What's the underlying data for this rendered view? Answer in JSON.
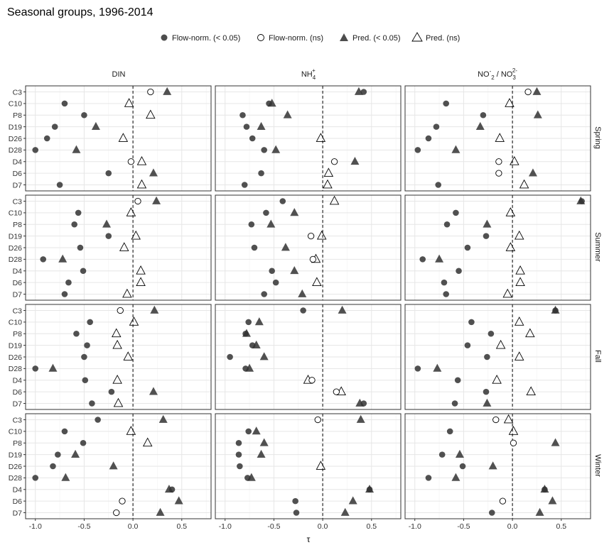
{
  "chart_data": {
    "type": "scatter",
    "title": "Seasonal groups, 1996-2014",
    "xlabel": "τ",
    "xlim": [
      -1.0,
      0.75
    ],
    "xticks": [
      "-1.0",
      "-0.5",
      "0.0",
      "0.5"
    ],
    "grid": true,
    "legend_position": "top",
    "legend": [
      {
        "key": "fn_sig",
        "label": "Flow-norm. (< 0.05)",
        "shape": "circle",
        "filled": true
      },
      {
        "key": "fn_ns",
        "label": "Flow-norm. (ns)",
        "shape": "circle",
        "filled": false
      },
      {
        "key": "pr_sig",
        "label": "Pred. (< 0.05)",
        "shape": "triangle",
        "filled": true
      },
      {
        "key": "pr_ns",
        "label": "Pred. (ns)",
        "shape": "triangle",
        "filled": false
      }
    ],
    "columns": [
      {
        "key": "DIN",
        "label": "DIN"
      },
      {
        "key": "NH4",
        "label": "NH4+"
      },
      {
        "key": "NOx",
        "label": "NO2- / NO3 2-"
      }
    ],
    "rows": [
      "Spring",
      "Summer",
      "Fall",
      "Winter"
    ],
    "sites": [
      "C3",
      "C10",
      "P8",
      "D19",
      "D26",
      "D28",
      "D4",
      "D6",
      "D7"
    ],
    "panels": {
      "Spring": {
        "DIN": {
          "fn": [
            [
              0.18,
              0
            ],
            [
              -0.7,
              1
            ],
            [
              -0.5,
              1
            ],
            [
              -0.8,
              1
            ],
            [
              -0.88,
              1
            ],
            [
              -1.0,
              1
            ],
            [
              -0.02,
              0
            ],
            [
              -0.25,
              1
            ],
            [
              -0.75,
              1
            ]
          ],
          "pr": [
            [
              0.35,
              1
            ],
            [
              -0.04,
              0
            ],
            [
              0.18,
              0
            ],
            [
              -0.38,
              1
            ],
            [
              -0.1,
              0
            ],
            [
              -0.58,
              1
            ],
            [
              0.09,
              0
            ],
            [
              0.21,
              1
            ],
            [
              0.09,
              0
            ]
          ]
        },
        "NH4": {
          "fn": [
            [
              0.42,
              1
            ],
            [
              -0.55,
              1
            ],
            [
              -0.82,
              1
            ],
            [
              -0.78,
              1
            ],
            [
              -0.72,
              1
            ],
            [
              -0.6,
              1
            ],
            [
              0.12,
              0
            ],
            [
              -0.63,
              1
            ],
            [
              -0.8,
              1
            ]
          ],
          "pr": [
            [
              0.37,
              1
            ],
            [
              -0.52,
              1
            ],
            [
              -0.36,
              1
            ],
            [
              -0.63,
              1
            ],
            [
              -0.02,
              0
            ],
            [
              -0.48,
              1
            ],
            [
              0.33,
              1
            ],
            [
              0.06,
              0
            ],
            [
              0.05,
              0
            ]
          ]
        },
        "NOx": {
          "fn": [
            [
              0.16,
              0
            ],
            [
              -0.68,
              1
            ],
            [
              -0.3,
              1
            ],
            [
              -0.78,
              1
            ],
            [
              -0.86,
              1
            ],
            [
              -0.97,
              1
            ],
            [
              -0.14,
              0
            ],
            [
              -0.14,
              0
            ],
            [
              -0.76,
              1
            ]
          ],
          "pr": [
            [
              0.25,
              1
            ],
            [
              -0.03,
              0
            ],
            [
              0.26,
              1
            ],
            [
              -0.33,
              1
            ],
            [
              -0.13,
              0
            ],
            [
              -0.58,
              1
            ],
            [
              0.02,
              0
            ],
            [
              0.21,
              1
            ],
            [
              0.12,
              0
            ]
          ]
        }
      },
      "Summer": {
        "DIN": {
          "fn": [
            [
              0.05,
              0
            ],
            [
              -0.56,
              1
            ],
            [
              -0.6,
              1
            ],
            [
              -0.25,
              1
            ],
            [
              -0.54,
              1
            ],
            [
              -0.92,
              1
            ],
            [
              -0.51,
              1
            ],
            [
              -0.66,
              1
            ],
            [
              -0.7,
              1
            ]
          ],
          "pr": [
            [
              0.24,
              1
            ],
            [
              -0.02,
              0
            ],
            [
              -0.27,
              1
            ],
            [
              0.03,
              0
            ],
            [
              -0.09,
              0
            ],
            [
              -0.72,
              1
            ],
            [
              0.08,
              0
            ],
            [
              0.08,
              0
            ],
            [
              -0.06,
              0
            ]
          ]
        },
        "NH4": {
          "fn": [
            [
              -0.41,
              1
            ],
            [
              -0.58,
              1
            ],
            [
              -0.73,
              1
            ],
            [
              -0.12,
              0
            ],
            [
              -0.7,
              1
            ],
            [
              -0.1,
              0
            ],
            [
              -0.52,
              1
            ],
            [
              -0.48,
              1
            ],
            [
              -0.6,
              1
            ]
          ],
          "pr": [
            [
              0.12,
              0
            ],
            [
              -0.29,
              1
            ],
            [
              -0.53,
              1
            ],
            [
              -0.01,
              0
            ],
            [
              -0.38,
              1
            ],
            [
              -0.07,
              0
            ],
            [
              -0.29,
              1
            ],
            [
              -0.06,
              0
            ],
            [
              -0.21,
              1
            ]
          ]
        },
        "NOx": {
          "fn": [
            [
              0.71,
              1
            ],
            [
              -0.58,
              1
            ],
            [
              -0.67,
              1
            ],
            [
              -0.27,
              1
            ],
            [
              -0.46,
              1
            ],
            [
              -0.92,
              1
            ],
            [
              -0.55,
              1
            ],
            [
              -0.7,
              1
            ],
            [
              -0.68,
              1
            ]
          ],
          "pr": [
            [
              0.7,
              1
            ],
            [
              -0.02,
              0
            ],
            [
              -0.26,
              1
            ],
            [
              0.07,
              0
            ],
            [
              -0.02,
              0
            ],
            [
              -0.75,
              1
            ],
            [
              0.08,
              0
            ],
            [
              0.08,
              0
            ],
            [
              -0.05,
              0
            ]
          ]
        }
      },
      "Fall": {
        "DIN": {
          "fn": [
            [
              -0.13,
              0
            ],
            [
              -0.44,
              1
            ],
            [
              -0.58,
              1
            ],
            [
              -0.47,
              1
            ],
            [
              -0.5,
              1
            ],
            [
              -1.0,
              1
            ],
            [
              -0.49,
              1
            ],
            [
              -0.22,
              1
            ],
            [
              -0.42,
              1
            ]
          ],
          "pr": [
            [
              0.22,
              1
            ],
            [
              0.01,
              0
            ],
            [
              -0.17,
              0
            ],
            [
              -0.16,
              0
            ],
            [
              -0.05,
              0
            ],
            [
              -0.82,
              1
            ],
            [
              -0.16,
              0
            ],
            [
              0.21,
              1
            ],
            [
              -0.15,
              0
            ]
          ]
        },
        "NH4": {
          "fn": [
            [
              -0.2,
              1
            ],
            [
              -0.76,
              1
            ],
            [
              -0.79,
              1
            ],
            [
              -0.72,
              1
            ],
            [
              -0.95,
              1
            ],
            [
              -0.79,
              1
            ],
            [
              -0.11,
              0
            ],
            [
              0.14,
              0
            ],
            [
              0.42,
              1
            ]
          ],
          "pr": [
            [
              0.2,
              1
            ],
            [
              -0.65,
              1
            ],
            [
              -0.78,
              1
            ],
            [
              -0.68,
              1
            ],
            [
              -0.6,
              1
            ],
            [
              -0.75,
              1
            ],
            [
              -0.15,
              0
            ],
            [
              0.19,
              0
            ],
            [
              0.38,
              1
            ]
          ]
        },
        "NOx": {
          "fn": [
            [
              0.44,
              1
            ],
            [
              -0.42,
              1
            ],
            [
              -0.22,
              1
            ],
            [
              -0.46,
              1
            ],
            [
              -0.26,
              1
            ],
            [
              -0.97,
              1
            ],
            [
              -0.56,
              1
            ],
            [
              -0.27,
              1
            ],
            [
              -0.59,
              1
            ]
          ],
          "pr": [
            [
              0.44,
              1
            ],
            [
              0.07,
              0
            ],
            [
              0.18,
              0
            ],
            [
              -0.12,
              0
            ],
            [
              0.07,
              0
            ],
            [
              -0.77,
              1
            ],
            [
              -0.16,
              0
            ],
            [
              0.19,
              0
            ],
            [
              -0.26,
              1
            ]
          ]
        }
      },
      "Winter": {
        "DIN": {
          "fn": [
            [
              -0.36,
              1
            ],
            [
              -0.7,
              1
            ],
            [
              -0.51,
              1
            ],
            [
              -0.77,
              1
            ],
            [
              -0.82,
              1
            ],
            [
              -1.0,
              1
            ],
            [
              0.4,
              1
            ],
            [
              -0.11,
              0
            ],
            [
              -0.17,
              0
            ]
          ],
          "pr": [
            [
              0.31,
              1
            ],
            [
              -0.02,
              0
            ],
            [
              0.15,
              0
            ],
            [
              -0.59,
              1
            ],
            [
              -0.2,
              1
            ],
            [
              -0.69,
              1
            ],
            [
              0.37,
              1
            ],
            [
              0.47,
              1
            ],
            [
              0.28,
              1
            ]
          ]
        },
        "NH4": {
          "fn": [
            [
              -0.05,
              0
            ],
            [
              -0.76,
              1
            ],
            [
              -0.86,
              1
            ],
            [
              -0.86,
              1
            ],
            [
              -0.85,
              1
            ],
            [
              -0.77,
              1
            ],
            [
              0.48,
              1
            ],
            [
              -0.28,
              1
            ],
            [
              -0.27,
              1
            ]
          ],
          "pr": [
            [
              0.39,
              1
            ],
            [
              -0.68,
              1
            ],
            [
              -0.6,
              1
            ],
            [
              -0.63,
              1
            ],
            [
              -0.02,
              0
            ],
            [
              -0.73,
              1
            ],
            [
              0.48,
              1
            ],
            [
              0.31,
              1
            ],
            [
              0.23,
              1
            ]
          ]
        },
        "NOx": {
          "fn": [
            [
              -0.17,
              0
            ],
            [
              -0.64,
              1
            ],
            [
              0.01,
              0
            ],
            [
              -0.72,
              1
            ],
            [
              -0.51,
              1
            ],
            [
              -0.86,
              1
            ],
            [
              0.33,
              1
            ],
            [
              -0.1,
              0
            ],
            [
              -0.21,
              1
            ]
          ],
          "pr": [
            [
              -0.04,
              0
            ],
            [
              0.01,
              0
            ],
            [
              0.44,
              1
            ],
            [
              -0.54,
              1
            ],
            [
              -0.2,
              1
            ],
            [
              -0.58,
              1
            ],
            [
              0.33,
              1
            ],
            [
              0.41,
              1
            ],
            [
              0.28,
              1
            ]
          ]
        }
      }
    }
  }
}
